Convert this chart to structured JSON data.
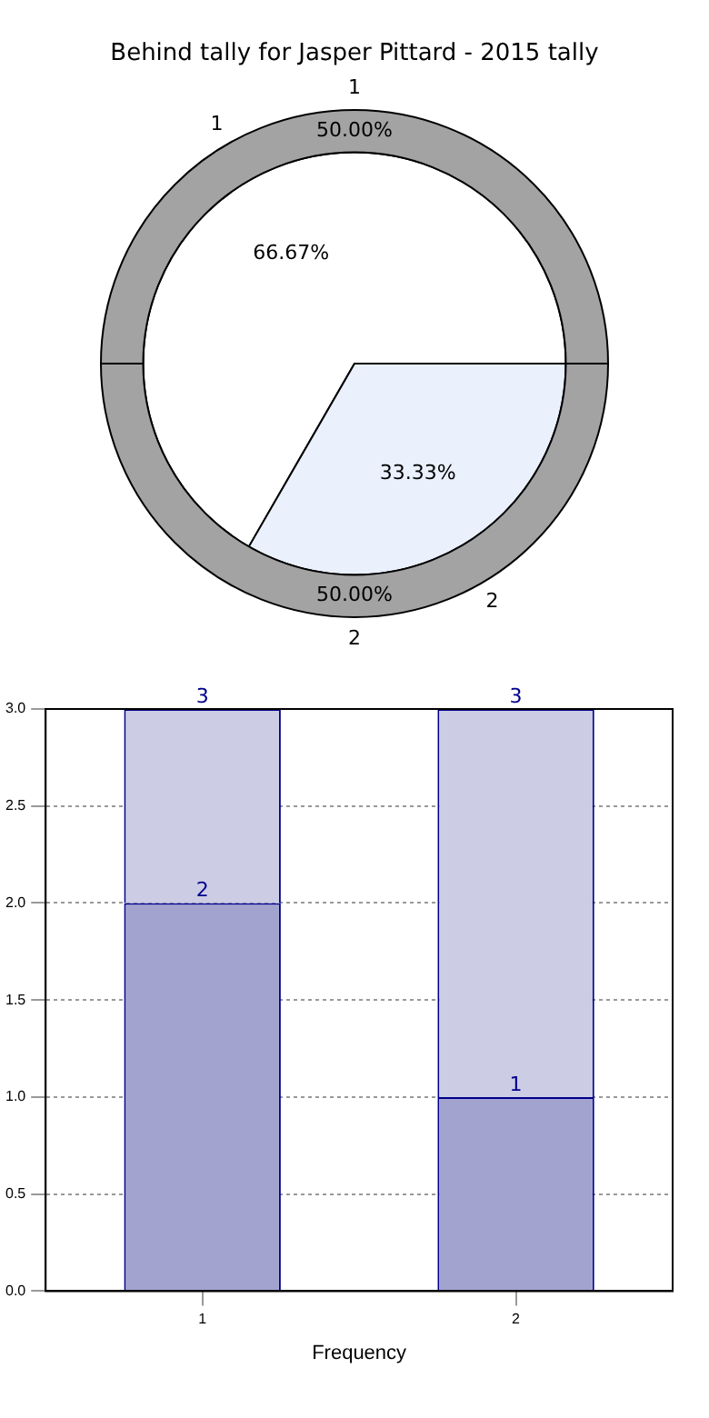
{
  "chart_data": [
    {
      "type": "pie",
      "title": "Behind tally for Jasper Pittard - 2015 tally",
      "categories": [
        "1",
        "2"
      ],
      "series": [
        {
          "values": [
            50,
            50
          ],
          "colors": [
            "#a3a3a3",
            "#a3a3a3"
          ],
          "value_labels": [
            "50.00%",
            "50.00%"
          ]
        },
        {
          "values": [
            66.67,
            33.33
          ],
          "colors": [
            "#ffffff",
            "#eaf0fc"
          ],
          "value_labels": [
            "66.67%",
            "33.33%"
          ]
        }
      ]
    },
    {
      "type": "bar",
      "stacked": true,
      "categories": [
        "1",
        "2"
      ],
      "xlabel": "Frequency",
      "series": [
        {
          "color": "#a3a3d0",
          "values": [
            2,
            1
          ],
          "value_labels": [
            "2",
            "1"
          ]
        },
        {
          "color": "#cccce4",
          "values": [
            1,
            2
          ]
        }
      ],
      "totals": [
        "3",
        "3"
      ],
      "ylim": [
        0,
        3
      ],
      "yticks": [
        {
          "value": 0,
          "label": "0.0"
        },
        {
          "value": 0.5,
          "label": "0.5"
        },
        {
          "value": 1,
          "label": "1.0"
        },
        {
          "value": 1.5,
          "label": "1.5"
        },
        {
          "value": 2,
          "label": "2.0"
        },
        {
          "value": 2.5,
          "label": "2.5"
        },
        {
          "value": 3,
          "label": "3.0"
        }
      ],
      "grid": true
    }
  ]
}
